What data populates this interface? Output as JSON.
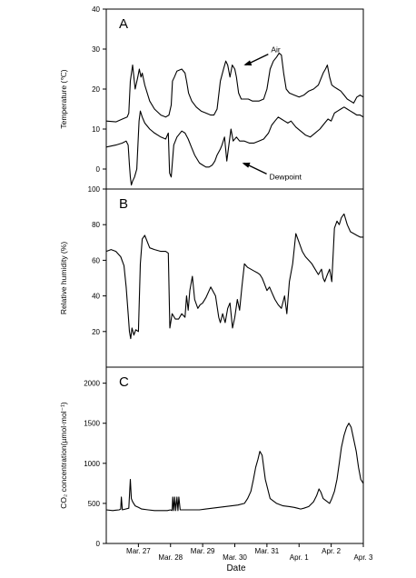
{
  "chart_data": {
    "type": "line",
    "xlabel": "Date",
    "x_ticks": [
      "Mar. 27",
      "Mar. 28",
      "Mar. 29",
      "Mar. 30",
      "Mar. 31",
      "Apr. 1",
      "Apr. 2",
      "Apr. 3"
    ],
    "x_range_days": [
      0,
      8
    ],
    "panels": [
      {
        "letter": "A",
        "ylabel": "Temperature (℃)",
        "ylim": [
          -5,
          40
        ],
        "yticks": [
          "0",
          "10",
          "20",
          "30",
          "40"
        ],
        "annotations": [
          {
            "text": "Air",
            "target_x": 4.25,
            "target_y": 26
          },
          {
            "text": "Dewpoint",
            "target_x": 4.2,
            "target_y": 1.5
          }
        ],
        "series": [
          {
            "name": "Air",
            "x": [
              0,
              0.3,
              0.5,
              0.65,
              0.7,
              0.75,
              0.82,
              0.9,
              0.98,
              1.03,
              1.08,
              1.12,
              1.2,
              1.35,
              1.5,
              1.7,
              1.85,
              1.95,
              2.02,
              2.06,
              2.12,
              2.2,
              2.35,
              2.45,
              2.5,
              2.56,
              2.66,
              2.8,
              2.95,
              3.1,
              3.25,
              3.35,
              3.45,
              3.55,
              3.65,
              3.72,
              3.78,
              3.85,
              3.92,
              4.0,
              4.05,
              4.12,
              4.2,
              4.27,
              4.35,
              4.42,
              4.55,
              4.75,
              4.9,
              5.0,
              5.1,
              5.2,
              5.3,
              5.38,
              5.45,
              5.52,
              5.6,
              5.7,
              5.85,
              6.0,
              6.15,
              6.3,
              6.45,
              6.6,
              6.75,
              6.82,
              6.88,
              6.95,
              7.02,
              7.1,
              7.2,
              7.3,
              7.4,
              7.5,
              7.6,
              7.7,
              7.8,
              7.9,
              8.0
            ],
            "values": [
              12,
              11.8,
              12.5,
              13,
              14,
              22,
              26,
              20,
              23,
              25,
              23,
              24,
              21,
              17,
              15,
              13.5,
              13,
              13.5,
              16,
              22,
              23,
              24.5,
              25,
              24,
              22,
              19,
              17,
              15.5,
              14.5,
              14,
              13.5,
              13.5,
              15,
              22,
              25,
              27,
              26,
              23,
              26,
              25,
              23,
              19,
              17.5,
              17.5,
              17.5,
              17.5,
              17,
              17,
              17.5,
              20,
              25,
              27,
              28,
              29,
              28.5,
              24,
              20,
              19,
              18.5,
              18,
              18.5,
              19.5,
              20,
              21,
              24,
              25,
              26,
              23,
              21,
              20.5,
              20,
              19.5,
              18.5,
              17.5,
              17,
              16.5,
              18,
              18.5,
              18
            ]
          },
          {
            "name": "Dewpoint",
            "x": [
              0,
              0.3,
              0.5,
              0.62,
              0.68,
              0.72,
              0.75,
              0.78,
              0.82,
              0.88,
              0.95,
              1.02,
              1.06,
              1.12,
              1.2,
              1.35,
              1.5,
              1.7,
              1.85,
              1.93,
              1.97,
              2.02,
              2.1,
              2.2,
              2.35,
              2.45,
              2.55,
              2.65,
              2.75,
              2.9,
              3.0,
              3.1,
              3.2,
              3.3,
              3.38,
              3.45,
              3.55,
              3.6,
              3.68,
              3.75,
              3.8,
              3.88,
              3.95,
              4.05,
              4.15,
              4.3,
              4.45,
              4.6,
              4.75,
              4.9,
              5.05,
              5.15,
              5.25,
              5.35,
              5.45,
              5.55,
              5.65,
              5.75,
              5.9,
              6.05,
              6.2,
              6.35,
              6.5,
              6.65,
              6.8,
              6.9,
              7.0,
              7.1,
              7.2,
              7.3,
              7.4,
              7.5,
              7.6,
              7.7,
              7.8,
              7.9,
              8.0
            ],
            "values": [
              5.5,
              6,
              6.5,
              7,
              6,
              1,
              -2,
              -4,
              -3,
              -2,
              0,
              12,
              14.5,
              13,
              11.5,
              10,
              9,
              8,
              7.5,
              9,
              -1,
              -2,
              6,
              8,
              9.5,
              9,
              7.5,
              5.5,
              3.5,
              1.5,
              1,
              0.5,
              0.5,
              1,
              2,
              3.5,
              5,
              6,
              8,
              2,
              5,
              10,
              7,
              8,
              7,
              7,
              6.5,
              6.5,
              7,
              7.5,
              9,
              11,
              12,
              13,
              12.5,
              12,
              11.5,
              12,
              10.5,
              9.5,
              8.5,
              8,
              9,
              10,
              11.5,
              12.5,
              12,
              14,
              14.5,
              15,
              15.5,
              15,
              14.5,
              14,
              13.5,
              13.5,
              13
            ]
          }
        ]
      },
      {
        "letter": "B",
        "ylabel": "Relative humidity (%)",
        "ylim": [
          0,
          100
        ],
        "yticks": [
          "20",
          "40",
          "60",
          "80",
          "100"
        ],
        "series": [
          {
            "name": "",
            "x": [
              0,
              0.15,
              0.3,
              0.45,
              0.55,
              0.62,
              0.68,
              0.72,
              0.76,
              0.8,
              0.86,
              0.92,
              1.0,
              1.06,
              1.12,
              1.2,
              1.35,
              1.5,
              1.7,
              1.85,
              1.93,
              1.98,
              2.05,
              2.15,
              2.25,
              2.35,
              2.45,
              2.5,
              2.55,
              2.6,
              2.68,
              2.75,
              2.85,
              2.92,
              3.0,
              3.1,
              3.25,
              3.4,
              3.5,
              3.55,
              3.62,
              3.7,
              3.78,
              3.85,
              3.93,
              4.0,
              4.08,
              4.15,
              4.22,
              4.3,
              4.4,
              4.5,
              4.6,
              4.7,
              4.78,
              4.85,
              4.92,
              5.0,
              5.08,
              5.15,
              5.25,
              5.35,
              5.45,
              5.55,
              5.62,
              5.7,
              5.8,
              5.9,
              6.0,
              6.1,
              6.2,
              6.3,
              6.4,
              6.5,
              6.6,
              6.7,
              6.75,
              6.8,
              6.88,
              6.95,
              7.02,
              7.1,
              7.18,
              7.25,
              7.32,
              7.4,
              7.5,
              7.6,
              7.7,
              7.8,
              7.9,
              8.0
            ],
            "values": [
              65,
              66,
              65,
              62,
              57,
              45,
              30,
              20,
              16,
              22,
              18,
              21,
              20,
              58,
              72,
              74,
              67,
              66,
              65,
              65,
              64,
              22,
              30,
              27,
              27,
              30,
              28,
              40,
              32,
              43,
              51,
              38,
              33,
              35,
              36,
              39,
              45,
              40,
              28,
              25,
              30,
              25,
              33,
              36,
              22,
              28,
              38,
              32,
              45,
              58,
              56,
              55,
              54,
              53,
              52,
              50,
              47,
              43,
              45,
              42,
              38,
              35,
              33,
              40,
              30,
              48,
              58,
              75,
              70,
              65,
              62,
              60,
              58,
              55,
              52,
              55,
              50,
              48,
              52,
              55,
              48,
              78,
              82,
              80,
              84,
              86,
              80,
              76,
              75,
              74,
              73,
              73
            ]
          }
        ]
      },
      {
        "letter": "C",
        "ylabel": "CO₂ concentration(µmol·mol⁻¹)",
        "ylim": [
          0,
          2200
        ],
        "yticks": [
          "0",
          "500",
          "1000",
          "1500",
          "2000"
        ],
        "series": [
          {
            "name": "",
            "x": [
              0,
              0.2,
              0.4,
              0.45,
              0.47,
              0.5,
              0.6,
              0.7,
              0.75,
              0.78,
              0.82,
              0.9,
              1.0,
              1.1,
              1.3,
              1.5,
              1.7,
              1.9,
              2.0,
              2.05,
              2.07,
              2.1,
              2.13,
              2.16,
              2.2,
              2.23,
              2.26,
              2.3,
              2.5,
              2.7,
              2.9,
              3.1,
              3.3,
              3.5,
              3.7,
              3.9,
              4.1,
              4.3,
              4.4,
              4.5,
              4.58,
              4.65,
              4.72,
              4.78,
              4.85,
              4.95,
              5.1,
              5.3,
              5.5,
              5.7,
              5.85,
              5.95,
              6.05,
              6.15,
              6.3,
              6.45,
              6.55,
              6.62,
              6.68,
              6.75,
              6.82,
              6.88,
              6.95,
              7.02,
              7.1,
              7.18,
              7.25,
              7.32,
              7.4,
              7.48,
              7.55,
              7.62,
              7.7,
              7.78,
              7.85,
              7.92,
              8.0
            ],
            "values": [
              420,
              410,
              420,
              430,
              580,
              420,
              430,
              440,
              800,
              560,
              520,
              470,
              450,
              430,
              420,
              410,
              410,
              410,
              420,
              410,
              580,
              410,
              580,
              410,
              580,
              410,
              580,
              420,
              420,
              420,
              420,
              430,
              440,
              450,
              460,
              470,
              480,
              500,
              560,
              650,
              800,
              950,
              1050,
              1150,
              1100,
              800,
              560,
              500,
              470,
              460,
              450,
              440,
              430,
              440,
              460,
              520,
              600,
              680,
              640,
              560,
              540,
              520,
              500,
              560,
              650,
              800,
              1000,
              1200,
              1350,
              1450,
              1500,
              1450,
              1300,
              1150,
              950,
              800,
              750
            ]
          }
        ]
      }
    ]
  }
}
